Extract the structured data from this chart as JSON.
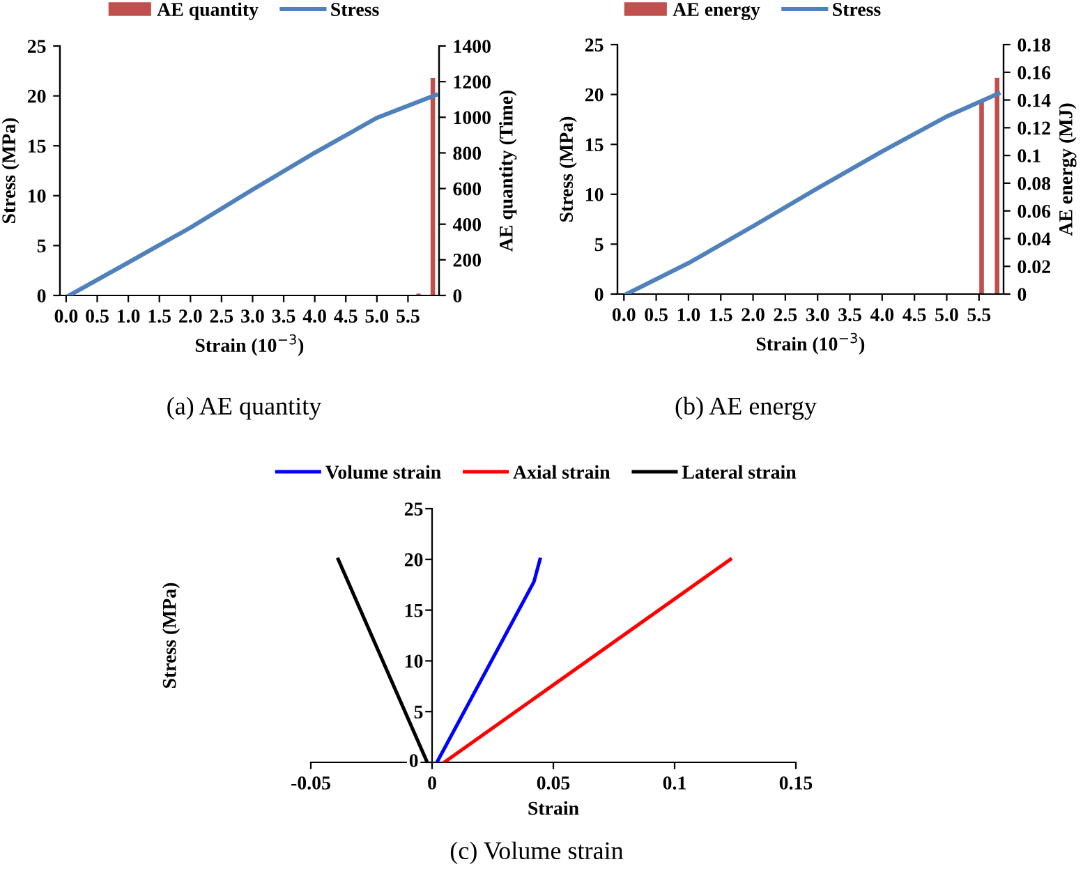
{
  "chart_data": [
    {
      "type": "line",
      "xlabel": "Strain (10$^{−3}$)",
      "ylabel": "Stress (MPa)",
      "y2label": "AE quantity (Time)",
      "annotations": [
        "(a) AE quantity"
      ],
      "xlim": [
        -0.1,
        6.0
      ],
      "xticks": [
        {
          "value": 0,
          "label": "0.0"
        },
        {
          "value": 0.5,
          "label": "0.5"
        },
        {
          "value": 1,
          "label": "1.0"
        },
        {
          "value": 1.5,
          "label": "1.5"
        },
        {
          "value": 2,
          "label": "2.0"
        },
        {
          "value": 2.5,
          "label": "2.5"
        },
        {
          "value": 3,
          "label": "3.0"
        },
        {
          "value": 3.5,
          "label": "3.5"
        },
        {
          "value": 4,
          "label": "4.0"
        },
        {
          "value": 4.5,
          "label": "4.5"
        },
        {
          "value": 5,
          "label": "5.0"
        },
        {
          "value": 5.5,
          "label": "5.5"
        }
      ],
      "ylim": [
        0,
        25
      ],
      "yticks": [
        0,
        5,
        10,
        15,
        20,
        25
      ],
      "y2lim": [
        0,
        1400
      ],
      "y2ticks": [
        0,
        200,
        400,
        600,
        800,
        1000,
        1200,
        1400
      ],
      "legend": "top",
      "grid": false,
      "series": [
        {
          "name": "AE quantity",
          "type": "bar",
          "axis": "y2",
          "color": "#c0504d",
          "x": [
            5.67,
            5.9
          ],
          "values": [
            10,
            1220
          ]
        },
        {
          "name": "Stress",
          "type": "line",
          "color": "#4f81bd",
          "x": [
            0.05,
            1,
            2,
            3,
            4,
            5,
            5.95
          ],
          "values": [
            0,
            3.3,
            6.8,
            10.6,
            14.3,
            17.8,
            20.1
          ]
        }
      ]
    },
    {
      "type": "line",
      "xlabel": "Strain (10$^{−3}$)",
      "ylabel": "Stress (MPa)",
      "y2label": "AE energy (MJ)",
      "annotations": [
        "(b) AE energy"
      ],
      "xlim": [
        -0.1,
        5.88
      ],
      "xticks": [
        {
          "value": 0,
          "label": "0.0"
        },
        {
          "value": 0.5,
          "label": "0.5"
        },
        {
          "value": 1,
          "label": "1.0"
        },
        {
          "value": 1.5,
          "label": "1.5"
        },
        {
          "value": 2,
          "label": "2.0"
        },
        {
          "value": 2.5,
          "label": "2.5"
        },
        {
          "value": 3,
          "label": "3.0"
        },
        {
          "value": 3.5,
          "label": "3.5"
        },
        {
          "value": 4,
          "label": "4.0"
        },
        {
          "value": 4.5,
          "label": "4.5"
        },
        {
          "value": 5,
          "label": "5.0"
        },
        {
          "value": 5.5,
          "label": "5.5"
        }
      ],
      "ylim": [
        0,
        25
      ],
      "yticks": [
        0,
        5,
        10,
        15,
        20,
        25
      ],
      "y2lim": [
        0,
        0.18
      ],
      "y2ticks": [
        0,
        0.02,
        0.04,
        0.06,
        0.08,
        0.1,
        0.12,
        0.14,
        0.16,
        0.18
      ],
      "legend": "top",
      "grid": false,
      "series": [
        {
          "name": "AE energy",
          "type": "bar",
          "axis": "y2",
          "color": "#c0504d",
          "x": [
            5.54,
            5.78
          ],
          "values": [
            0.14,
            0.156
          ]
        },
        {
          "name": "Stress",
          "type": "line",
          "color": "#4f81bd",
          "x": [
            0.04,
            1,
            2,
            3,
            4,
            5,
            5.8
          ],
          "values": [
            0,
            3.1,
            6.8,
            10.6,
            14.3,
            17.8,
            20.1
          ]
        }
      ]
    },
    {
      "type": "line",
      "xlabel": "Strain",
      "ylabel": "Stress (MPa)",
      "annotations": [
        "(c) Volume strain"
      ],
      "xlim": [
        -0.05,
        0.15
      ],
      "xticks": [
        -0.05,
        0,
        0.05,
        0.1,
        0.15
      ],
      "ylim": [
        0,
        25
      ],
      "yticks": [
        0,
        5,
        10,
        15,
        20,
        25
      ],
      "legend": "top",
      "grid": false,
      "series": [
        {
          "name": "Volume strain",
          "color": "#0000ff",
          "x": [
            0.002,
            0.042,
            0.0445
          ],
          "values": [
            0,
            17.8,
            20
          ]
        },
        {
          "name": "Axial strain",
          "color": "#ff0000",
          "x": [
            0.005,
            0.123
          ],
          "values": [
            0,
            20
          ]
        },
        {
          "name": "Lateral strain",
          "color": "#000000",
          "x": [
            -0.002,
            -0.0387
          ],
          "values": [
            0,
            20
          ]
        }
      ]
    }
  ]
}
